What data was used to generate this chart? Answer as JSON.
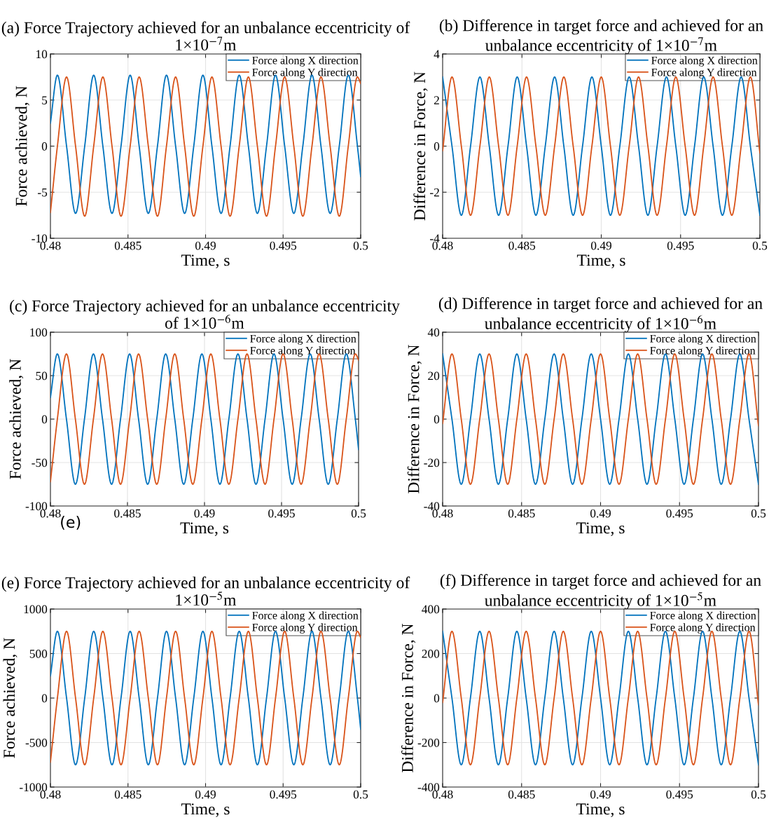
{
  "chart_data": [
    {
      "type": "line",
      "title": "(a) Force Trajectory achieved for an unbalance eccentricity of 1×10$^{−7}$m",
      "xlabel": "Time, s",
      "ylabel": "Force achieved, N",
      "xlim": [
        0.48,
        0.5
      ],
      "xticks": [
        0.48,
        0.485,
        0.49,
        0.495,
        0.5
      ],
      "ylim": [
        -10,
        10
      ],
      "yticks": [
        -10,
        -5,
        0,
        5,
        10
      ],
      "grid": true,
      "legend": "top right",
      "marker": "none",
      "line_style": "solid",
      "x": [
        0.48,
        0.48045,
        0.48104,
        0.48162,
        0.48221,
        0.48279,
        0.48338,
        0.48397,
        0.48455,
        0.48514,
        0.48572,
        0.48631,
        0.4869,
        0.48748,
        0.48807,
        0.48865,
        0.48924,
        0.48983,
        0.49041,
        0.491,
        0.49158,
        0.49217,
        0.49276,
        0.49334,
        0.49393,
        0.49451,
        0.4951,
        0.49569,
        0.49627,
        0.49686,
        0.49744,
        0.49803,
        0.49862,
        0.4992,
        0.49979,
        0.5
      ],
      "series": [
        {
          "name": "Force along X direction",
          "color": "#0072bd",
          "values": [
            2.5,
            7.7,
            0,
            -7.3,
            0,
            7.7,
            0,
            -7.3,
            0,
            7.7,
            0,
            -7.3,
            0,
            7.7,
            0,
            -7.3,
            0,
            7.7,
            0,
            -7.3,
            0,
            7.7,
            0,
            -7.3,
            0,
            7.7,
            0,
            -7.3,
            0,
            7.7,
            0,
            -7.3,
            0,
            7.7,
            0,
            -3.3
          ]
        },
        {
          "name": "Force along Y direction",
          "color": "#d95319",
          "values": [
            -7.2,
            0,
            7.5,
            0,
            -7.6,
            0,
            7.5,
            0,
            -7.6,
            0,
            7.5,
            0,
            -7.6,
            0,
            7.5,
            0,
            -7.6,
            0,
            7.5,
            0,
            -7.6,
            0,
            7.5,
            0,
            -7.6,
            0,
            7.5,
            0,
            -7.6,
            0,
            7.5,
            0,
            -7.6,
            0,
            7.5,
            6.8
          ]
        }
      ]
    },
    {
      "type": "line",
      "title": "(b) Difference in target force and achieved for an unbalance eccentricity of 1×10$^{−7}$m",
      "xlabel": "Time, s",
      "ylabel": "Difference in Force, N",
      "xlim": [
        0.48,
        0.5
      ],
      "xticks": [
        0.48,
        0.485,
        0.49,
        0.495,
        0.5
      ],
      "ylim": [
        -4,
        4
      ],
      "yticks": [
        -4,
        -2,
        0,
        2,
        4
      ],
      "grid": true,
      "legend": "top right",
      "marker": "none",
      "line_style": "solid",
      "x": [
        0.48,
        0.48059,
        0.48118,
        0.48176,
        0.48235,
        0.48294,
        0.48353,
        0.48412,
        0.4847,
        0.48529,
        0.48588,
        0.48647,
        0.48706,
        0.48764,
        0.48823,
        0.48882,
        0.48941,
        0.49,
        0.49058,
        0.49117,
        0.49176,
        0.49235,
        0.49294,
        0.49352,
        0.49411,
        0.4947,
        0.49529,
        0.49588,
        0.49646,
        0.49705,
        0.49764,
        0.49823,
        0.49882,
        0.4994,
        0.5
      ],
      "series": [
        {
          "name": "Force along X direction",
          "color": "#0072bd",
          "values": [
            3,
            0,
            -3,
            0,
            3,
            0,
            -3,
            0,
            3,
            0,
            -3,
            0,
            3,
            0,
            -3,
            0,
            3,
            0,
            -3,
            0,
            3,
            0,
            -3,
            0,
            3,
            0,
            -3,
            0,
            3,
            0,
            -3,
            0,
            3,
            0,
            -3
          ]
        },
        {
          "name": "Force along Y direction",
          "color": "#d95319",
          "values": [
            -0.2,
            3,
            0,
            -3,
            0,
            3,
            0,
            -3,
            0,
            3,
            0,
            -3,
            0,
            3,
            0,
            -3,
            0,
            3,
            0,
            -3,
            0,
            3,
            0,
            -3,
            0,
            3,
            0,
            -3,
            0,
            3,
            0,
            -3,
            0,
            3,
            -0.3
          ]
        }
      ]
    },
    {
      "type": "line",
      "title": "(c) Force Trajectory achieved for an unbalance eccentricity of 1×10$^{−6}$m",
      "xlabel": "Time, s",
      "ylabel": "Force achieved, N",
      "xlim": [
        0.48,
        0.5
      ],
      "xticks": [
        0.48,
        0.485,
        0.49,
        0.495,
        0.5
      ],
      "ylim": [
        -100,
        100
      ],
      "yticks": [
        -100,
        -50,
        0,
        50,
        100
      ],
      "grid": true,
      "legend": "top right",
      "marker": "none",
      "line_style": "solid",
      "annotations": [
        "(e)"
      ],
      "x": [
        0.48,
        0.48045,
        0.48104,
        0.48162,
        0.48221,
        0.48279,
        0.48338,
        0.48397,
        0.48455,
        0.48514,
        0.48572,
        0.48631,
        0.4869,
        0.48748,
        0.48807,
        0.48865,
        0.48924,
        0.48983,
        0.49041,
        0.491,
        0.49158,
        0.49217,
        0.49276,
        0.49334,
        0.49393,
        0.49451,
        0.4951,
        0.49569,
        0.49627,
        0.49686,
        0.49744,
        0.49803,
        0.49862,
        0.4992,
        0.49979,
        0.5
      ],
      "series": [
        {
          "name": "Force along X direction",
          "color": "#0072bd",
          "values": [
            25,
            75,
            0,
            -75,
            0,
            75,
            0,
            -75,
            0,
            75,
            0,
            -75,
            0,
            75,
            0,
            -75,
            0,
            75,
            0,
            -75,
            0,
            75,
            0,
            -75,
            0,
            75,
            0,
            -75,
            0,
            75,
            0,
            -75,
            0,
            75,
            0,
            -35
          ]
        },
        {
          "name": "Force along Y direction",
          "color": "#d95319",
          "values": [
            -72,
            0,
            75,
            0,
            -75,
            0,
            75,
            0,
            -75,
            0,
            75,
            0,
            -75,
            0,
            75,
            0,
            -75,
            0,
            75,
            0,
            -75,
            0,
            75,
            0,
            -75,
            0,
            75,
            0,
            -75,
            0,
            75,
            0,
            -75,
            0,
            75,
            68
          ]
        }
      ]
    },
    {
      "type": "line",
      "title": "(d) Difference in target force and achieved for an unbalance eccentricity of 1×10$^{−6}$m",
      "xlabel": "Time, s",
      "ylabel": "Difference in Force, N",
      "xlim": [
        0.48,
        0.5
      ],
      "xticks": [
        0.48,
        0.485,
        0.49,
        0.495,
        0.5
      ],
      "ylim": [
        -40,
        40
      ],
      "yticks": [
        -40,
        -20,
        0,
        20,
        40
      ],
      "grid": true,
      "legend": "top right",
      "marker": "none",
      "line_style": "solid",
      "x": [
        0.48,
        0.48059,
        0.48118,
        0.48176,
        0.48235,
        0.48294,
        0.48353,
        0.48412,
        0.4847,
        0.48529,
        0.48588,
        0.48647,
        0.48706,
        0.48764,
        0.48823,
        0.48882,
        0.48941,
        0.49,
        0.49058,
        0.49117,
        0.49176,
        0.49235,
        0.49294,
        0.49352,
        0.49411,
        0.4947,
        0.49529,
        0.49588,
        0.49646,
        0.49705,
        0.49764,
        0.49823,
        0.49882,
        0.4994,
        0.5
      ],
      "series": [
        {
          "name": "Force along X direction",
          "color": "#0072bd",
          "values": [
            30,
            0,
            -30,
            0,
            30,
            0,
            -30,
            0,
            30,
            0,
            -30,
            0,
            30,
            0,
            -30,
            0,
            30,
            0,
            -30,
            0,
            30,
            0,
            -30,
            0,
            30,
            0,
            -30,
            0,
            30,
            0,
            -30,
            0,
            30,
            0,
            -30
          ]
        },
        {
          "name": "Force along Y direction",
          "color": "#d95319",
          "values": [
            -2,
            30,
            0,
            -30,
            0,
            30,
            0,
            -30,
            0,
            30,
            0,
            -30,
            0,
            30,
            0,
            -30,
            0,
            30,
            0,
            -30,
            0,
            30,
            0,
            -30,
            0,
            30,
            0,
            -30,
            0,
            30,
            0,
            -30,
            0,
            30,
            -3
          ]
        }
      ]
    },
    {
      "type": "line",
      "title": "(e) Force Trajectory achieved for an unbalance eccentricity of 1×10$^{−5}$m",
      "xlabel": "Time, s",
      "ylabel": "Force achieved, N",
      "xlim": [
        0.48,
        0.5
      ],
      "xticks": [
        0.48,
        0.485,
        0.49,
        0.495,
        0.5
      ],
      "ylim": [
        -1000,
        1000
      ],
      "yticks": [
        -1000,
        -500,
        0,
        500,
        1000
      ],
      "grid": true,
      "legend": "top right",
      "marker": "none",
      "line_style": "solid",
      "x": [
        0.48,
        0.48045,
        0.48104,
        0.48162,
        0.48221,
        0.48279,
        0.48338,
        0.48397,
        0.48455,
        0.48514,
        0.48572,
        0.48631,
        0.4869,
        0.48748,
        0.48807,
        0.48865,
        0.48924,
        0.48983,
        0.49041,
        0.491,
        0.49158,
        0.49217,
        0.49276,
        0.49334,
        0.49393,
        0.49451,
        0.4951,
        0.49569,
        0.49627,
        0.49686,
        0.49744,
        0.49803,
        0.49862,
        0.4992,
        0.49979,
        0.5
      ],
      "series": [
        {
          "name": "Force along X direction",
          "color": "#0072bd",
          "values": [
            250,
            750,
            0,
            -750,
            0,
            750,
            0,
            -750,
            0,
            750,
            0,
            -750,
            0,
            750,
            0,
            -750,
            0,
            750,
            0,
            -750,
            0,
            750,
            0,
            -750,
            0,
            750,
            0,
            -750,
            0,
            750,
            0,
            -750,
            0,
            750,
            0,
            -350
          ]
        },
        {
          "name": "Force along Y direction",
          "color": "#d95319",
          "values": [
            -720,
            0,
            750,
            0,
            -750,
            0,
            750,
            0,
            -750,
            0,
            750,
            0,
            -750,
            0,
            750,
            0,
            -750,
            0,
            750,
            0,
            -750,
            0,
            750,
            0,
            -750,
            0,
            750,
            0,
            -750,
            0,
            750,
            0,
            -750,
            0,
            750,
            680
          ]
        }
      ]
    },
    {
      "type": "line",
      "title": "(f) Difference in target force and achieved for an unbalance eccentricity of 1×10$^{−5}$m",
      "xlabel": "Time, s",
      "ylabel": "Difference in Force, N",
      "xlim": [
        0.48,
        0.5
      ],
      "xticks": [
        0.48,
        0.485,
        0.49,
        0.495,
        0.5
      ],
      "ylim": [
        -400,
        400
      ],
      "yticks": [
        -400,
        -200,
        0,
        200,
        400
      ],
      "grid": true,
      "legend": "top right",
      "marker": "none",
      "line_style": "solid",
      "x": [
        0.48,
        0.48059,
        0.48118,
        0.48176,
        0.48235,
        0.48294,
        0.48353,
        0.48412,
        0.4847,
        0.48529,
        0.48588,
        0.48647,
        0.48706,
        0.48764,
        0.48823,
        0.48882,
        0.48941,
        0.49,
        0.49058,
        0.49117,
        0.49176,
        0.49235,
        0.49294,
        0.49352,
        0.49411,
        0.4947,
        0.49529,
        0.49588,
        0.49646,
        0.49705,
        0.49764,
        0.49823,
        0.49882,
        0.4994,
        0.5
      ],
      "series": [
        {
          "name": "Force along X direction",
          "color": "#0072bd",
          "values": [
            300,
            0,
            -300,
            0,
            300,
            0,
            -300,
            0,
            300,
            0,
            -300,
            0,
            300,
            0,
            -300,
            0,
            300,
            0,
            -300,
            0,
            300,
            0,
            -300,
            0,
            300,
            0,
            -300,
            0,
            300,
            0,
            -300,
            0,
            300,
            0,
            -300
          ]
        },
        {
          "name": "Force along Y direction",
          "color": "#d95319",
          "values": [
            -20,
            300,
            0,
            -300,
            0,
            300,
            0,
            -300,
            0,
            300,
            0,
            -300,
            0,
            300,
            0,
            -300,
            0,
            300,
            0,
            -300,
            0,
            300,
            0,
            -300,
            0,
            300,
            0,
            -300,
            0,
            300,
            0,
            -300,
            0,
            300,
            -30
          ]
        }
      ]
    }
  ]
}
